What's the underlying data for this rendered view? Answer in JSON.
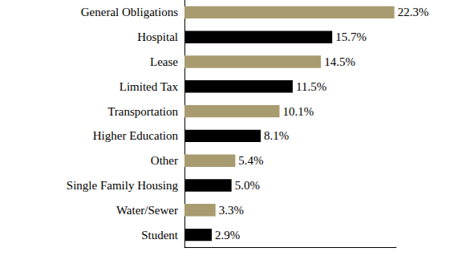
{
  "chart_data": {
    "type": "bar",
    "orientation": "horizontal",
    "categories": [
      "General Obligations",
      "Hospital",
      "Lease",
      "Limited Tax",
      "Transportation",
      "Higher Education",
      "Other",
      "Single Family Housing",
      "Water/Sewer",
      "Student"
    ],
    "values": [
      22.3,
      15.7,
      14.5,
      11.5,
      10.1,
      8.1,
      5.4,
      5.0,
      3.3,
      2.9
    ],
    "value_labels": [
      "22.3%",
      "15.7%",
      "14.5%",
      "11.5%",
      "10.1%",
      "8.1%",
      "5.4%",
      "5.0%",
      "3.3%",
      "2.9%"
    ],
    "colors": [
      "#a89b6f",
      "#000000",
      "#a89b6f",
      "#000000",
      "#a89b6f",
      "#000000",
      "#a89b6f",
      "#000000",
      "#a89b6f",
      "#000000"
    ],
    "xlim": [
      0,
      22.5
    ],
    "data_labels": true,
    "tick_labels": "y",
    "grid": false
  }
}
